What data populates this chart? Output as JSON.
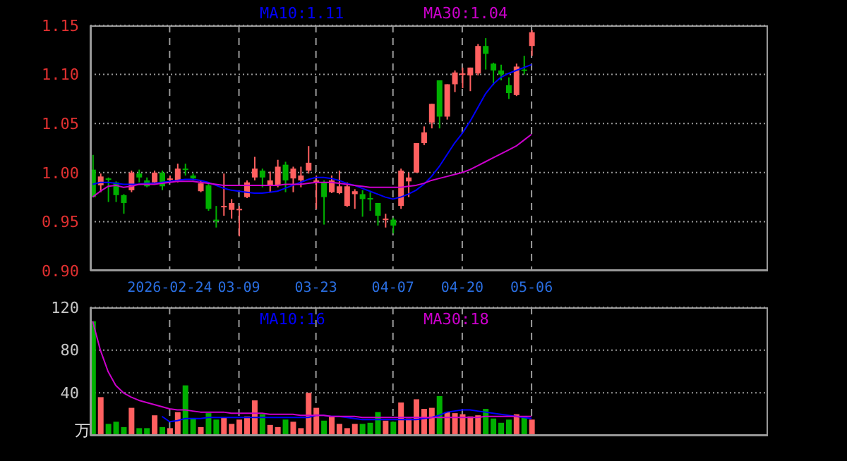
{
  "chart_data": [
    {
      "type": "candlestick",
      "grid": true,
      "legend": "top",
      "categories": [
        null,
        null,
        null,
        null,
        null,
        null,
        null,
        null,
        null,
        null,
        "2026-02-24",
        null,
        null,
        null,
        null,
        null,
        null,
        null,
        null,
        "03-09",
        null,
        null,
        null,
        null,
        null,
        null,
        null,
        null,
        null,
        "03-23",
        null,
        null,
        null,
        null,
        null,
        null,
        null,
        null,
        null,
        "04-07",
        null,
        null,
        null,
        null,
        null,
        null,
        null,
        null,
        "04-20",
        null,
        null,
        null,
        null,
        null,
        null,
        null,
        null,
        "05-06"
      ],
      "ylim": [
        0.9,
        1.15
      ],
      "yticks": [
        {
          "value": 0.9,
          "label": "0.90"
        },
        {
          "value": 0.95,
          "label": "0.95"
        },
        {
          "value": 1.0,
          "label": "1.00"
        },
        {
          "value": 1.05,
          "label": "1.05"
        },
        {
          "value": 1.1,
          "label": "1.10"
        },
        {
          "value": 1.15,
          "label": "1.15"
        }
      ],
      "series": [
        {
          "ohlc": [
            [
              1.003,
              1.018,
              0.975,
              0.975
            ],
            [
              0.987,
              0.999,
              0.98,
              0.996
            ],
            [
              0.994,
              0.995,
              0.97,
              0.993
            ],
            [
              0.99,
              0.991,
              0.97,
              0.977
            ],
            [
              0.977,
              0.978,
              0.958,
              0.969
            ],
            [
              0.982,
              1.002,
              0.98,
              1.0
            ],
            [
              0.999,
              1.003,
              0.99,
              0.995
            ],
            [
              0.992,
              0.995,
              0.985,
              0.986
            ],
            [
              0.99,
              1.002,
              0.988,
              1.0
            ],
            [
              1.0,
              1.002,
              0.982,
              0.986
            ],
            [
              0.993,
              0.997,
              0.99,
              0.994
            ],
            [
              0.992,
              1.009,
              0.99,
              1.004
            ],
            [
              1.004,
              1.009,
              0.997,
              1.003
            ],
            [
              0.997,
              0.999,
              0.992,
              0.994
            ],
            [
              0.981,
              0.992,
              0.98,
              0.989
            ],
            [
              0.987,
              0.99,
              0.961,
              0.963
            ],
            [
              0.952,
              0.966,
              0.944,
              0.951
            ],
            [
              0.965,
              0.999,
              0.956,
              0.966
            ],
            [
              0.962,
              0.973,
              0.953,
              0.969
            ],
            [
              0.963,
              0.966,
              0.935,
              0.963
            ],
            [
              0.975,
              0.992,
              0.974,
              0.99
            ],
            [
              0.995,
              1.016,
              0.992,
              1.004
            ],
            [
              1.002,
              1.004,
              0.985,
              0.995
            ],
            [
              0.987,
              1.001,
              0.98,
              0.992
            ],
            [
              0.987,
              1.013,
              0.985,
              1.006
            ],
            [
              1.008,
              1.011,
              0.98,
              0.992
            ],
            [
              0.994,
              1.006,
              0.98,
              1.004
            ],
            [
              0.992,
              1.006,
              0.985,
              0.997
            ],
            [
              1.002,
              1.027,
              0.999,
              1.01
            ],
            [
              0.99,
              0.997,
              0.963,
              0.992
            ],
            [
              0.99,
              0.992,
              0.947,
              0.975
            ],
            [
              0.98,
              0.997,
              0.979,
              0.992
            ],
            [
              0.979,
              1.002,
              0.978,
              0.986
            ],
            [
              0.966,
              0.99,
              0.965,
              0.986
            ],
            [
              0.978,
              0.983,
              0.963,
              0.981
            ],
            [
              0.978,
              0.982,
              0.955,
              0.973
            ],
            [
              0.974,
              0.98,
              0.961,
              0.973
            ],
            [
              0.969,
              0.969,
              0.946,
              0.956
            ],
            [
              0.952,
              0.958,
              0.944,
              0.953
            ],
            [
              0.952,
              0.954,
              0.938,
              0.946
            ],
            [
              0.966,
              1.004,
              0.963,
              1.002
            ],
            [
              0.991,
              1.0,
              0.975,
              0.995
            ],
            [
              1.0,
              1.03,
              1.0,
              1.03
            ],
            [
              1.03,
              1.047,
              1.028,
              1.041
            ],
            [
              1.051,
              1.07,
              1.045,
              1.07
            ],
            [
              1.094,
              1.094,
              1.045,
              1.057
            ],
            [
              1.057,
              1.09,
              1.054,
              1.09
            ],
            [
              1.09,
              1.104,
              1.082,
              1.102
            ],
            [
              1.1,
              1.107,
              1.086,
              1.101
            ],
            [
              1.099,
              1.107,
              1.083,
              1.107
            ],
            [
              1.101,
              1.131,
              1.099,
              1.129
            ],
            [
              1.129,
              1.137,
              1.105,
              1.121
            ],
            [
              1.111,
              1.112,
              1.089,
              1.104
            ],
            [
              1.104,
              1.11,
              1.094,
              1.1
            ],
            [
              1.089,
              1.097,
              1.075,
              1.081
            ],
            [
              1.079,
              1.111,
              1.078,
              1.108
            ],
            [
              1.105,
              1.119,
              1.1,
              1.104
            ],
            [
              1.129,
              1.145,
              1.119,
              1.143
            ]
          ],
          "colors": [
            "#00b000",
            "#ff6060",
            "#00b000",
            "#00b000",
            "#00b000",
            "#ff6060",
            "#00b000",
            "#00b000",
            "#ff6060",
            "#00b000",
            "#ff6060",
            "#ff6060",
            "#00b000",
            "#00b000",
            "#ff6060",
            "#00b000",
            "#00b000",
            "#ff6060",
            "#ff6060",
            "#ff6060",
            "#ff6060",
            "#ff6060",
            "#00b000",
            "#ff6060",
            "#ff6060",
            "#00b000",
            "#ff6060",
            "#ff6060",
            "#ff6060",
            "#ff6060",
            "#00b000",
            "#ff6060",
            "#ff6060",
            "#ff6060",
            "#ff6060",
            "#00b000",
            "#00b000",
            "#00b000",
            "#ff6060",
            "#00b000",
            "#ff6060",
            "#ff6060",
            "#ff6060",
            "#ff6060",
            "#ff6060",
            "#00b000",
            "#ff6060",
            "#ff6060",
            "#ff6060",
            "#ff6060",
            "#ff6060",
            "#00b000",
            "#00b000",
            "#00b000",
            "#00b000",
            "#ff6060",
            "#00b000",
            "#ff6060"
          ]
        },
        {
          "type": "line",
          "name": "MA10:1.11",
          "color": "#0000ff",
          "values": [
            0.988,
            0.99,
            0.99,
            0.989,
            0.988,
            0.988,
            0.988,
            0.989,
            0.989,
            0.99,
            0.991,
            0.992,
            0.993,
            0.993,
            0.992,
            0.99,
            0.987,
            0.984,
            0.982,
            0.981,
            0.98,
            0.979,
            0.979,
            0.98,
            0.981,
            0.984,
            0.987,
            0.99,
            0.993,
            0.995,
            0.995,
            0.994,
            0.992,
            0.989,
            0.987,
            0.984,
            0.981,
            0.978,
            0.975,
            0.973,
            0.975,
            0.978,
            0.982,
            0.988,
            0.996,
            1.006,
            1.018,
            1.03,
            1.04,
            1.052,
            1.066,
            1.08,
            1.09,
            1.097,
            1.101,
            1.104,
            1.107,
            1.11
          ]
        },
        {
          "type": "line",
          "name": "MA30:1.04",
          "color": "#cc00cc",
          "values": [
            0.975,
            0.981,
            0.986,
            0.987,
            0.985,
            0.986,
            0.988,
            0.988,
            0.988,
            0.989,
            0.99,
            0.991,
            0.991,
            0.991,
            0.99,
            0.989,
            0.988,
            0.987,
            0.987,
            0.987,
            0.987,
            0.987,
            0.987,
            0.987,
            0.987,
            0.988,
            0.988,
            0.988,
            0.989,
            0.99,
            0.99,
            0.99,
            0.989,
            0.988,
            0.987,
            0.986,
            0.985,
            0.985,
            0.985,
            0.985,
            0.985,
            0.986,
            0.987,
            0.989,
            0.992,
            0.994,
            0.996,
            0.998,
            1.0,
            1.003,
            1.007,
            1.011,
            1.015,
            1.019,
            1.023,
            1.027,
            1.033,
            1.039
          ]
        }
      ]
    },
    {
      "type": "bar",
      "grid": true,
      "legend": "top",
      "tick_labels": "y",
      "ylabel": "万",
      "categories": [
        null,
        null,
        null,
        null,
        null,
        null,
        null,
        null,
        null,
        null,
        null,
        null,
        null,
        null,
        null,
        null,
        null,
        null,
        null,
        null,
        null,
        null,
        null,
        null,
        null,
        null,
        null,
        null,
        null,
        null,
        null,
        null,
        null,
        null,
        null,
        null,
        null,
        null,
        null,
        null,
        null,
        null,
        null,
        null,
        null,
        null,
        null,
        null,
        null,
        null,
        null,
        null,
        null,
        null,
        null,
        null,
        null,
        null
      ],
      "ylim": [
        0,
        120
      ],
      "yticks": [
        {
          "value": 0,
          "label": null
        },
        40,
        80,
        120
      ],
      "series": [
        {
          "values": [
            107,
            36,
            11,
            13,
            8,
            26,
            7,
            7,
            19,
            8,
            7,
            22,
            47,
            16,
            8,
            21,
            15,
            17,
            11,
            15,
            18,
            33,
            20,
            10,
            8,
            15,
            13,
            7,
            40,
            26,
            14,
            18,
            11,
            7,
            11,
            11,
            12,
            22,
            14,
            13,
            31,
            16,
            34,
            25,
            26,
            37,
            22,
            21,
            20,
            18,
            19,
            25,
            16,
            12,
            15,
            20,
            18,
            15
          ],
          "colors": [
            "#00b000",
            "#ff6060",
            "#00b000",
            "#00b000",
            "#00b000",
            "#ff6060",
            "#00b000",
            "#00b000",
            "#ff6060",
            "#00b000",
            "#ff6060",
            "#ff6060",
            "#00b000",
            "#00b000",
            "#ff6060",
            "#00b000",
            "#00b000",
            "#ff6060",
            "#ff6060",
            "#ff6060",
            "#ff6060",
            "#ff6060",
            "#00b000",
            "#ff6060",
            "#ff6060",
            "#00b000",
            "#ff6060",
            "#ff6060",
            "#ff6060",
            "#ff6060",
            "#00b000",
            "#ff6060",
            "#ff6060",
            "#ff6060",
            "#ff6060",
            "#00b000",
            "#00b000",
            "#00b000",
            "#ff6060",
            "#00b000",
            "#ff6060",
            "#ff6060",
            "#ff6060",
            "#ff6060",
            "#ff6060",
            "#00b000",
            "#ff6060",
            "#ff6060",
            "#ff6060",
            "#ff6060",
            "#ff6060",
            "#00b000",
            "#00b000",
            "#00b000",
            "#00b000",
            "#ff6060",
            "#00b000",
            "#ff6060"
          ]
        },
        {
          "type": "line",
          "name": "MA10:16",
          "color": "#0000ff",
          "values": [
            null,
            null,
            null,
            null,
            null,
            null,
            null,
            null,
            null,
            18,
            13,
            14,
            16,
            16,
            16,
            17,
            17,
            17,
            17,
            17,
            17,
            17,
            17,
            17,
            17,
            17,
            17,
            17,
            17,
            19,
            19,
            18,
            18,
            17,
            16,
            15,
            15,
            15,
            15,
            15,
            15,
            15,
            15,
            16,
            17,
            19,
            22,
            23,
            24,
            24,
            23,
            22,
            21,
            20,
            19,
            18,
            17,
            16
          ]
        },
        {
          "type": "line",
          "name": "MA30:18",
          "color": "#cc00cc",
          "values": [
            107,
            80,
            60,
            47,
            40,
            36,
            33,
            31,
            29,
            27,
            25,
            24,
            24,
            23,
            22,
            22,
            22,
            22,
            21,
            21,
            21,
            21,
            21,
            20,
            20,
            20,
            20,
            19,
            19,
            19,
            19,
            18,
            18,
            18,
            18,
            17,
            17,
            17,
            17,
            17,
            17,
            17,
            17,
            17,
            17,
            17,
            17,
            17,
            17,
            17,
            17,
            18,
            18,
            18,
            18,
            18,
            18,
            18
          ]
        }
      ]
    }
  ]
}
